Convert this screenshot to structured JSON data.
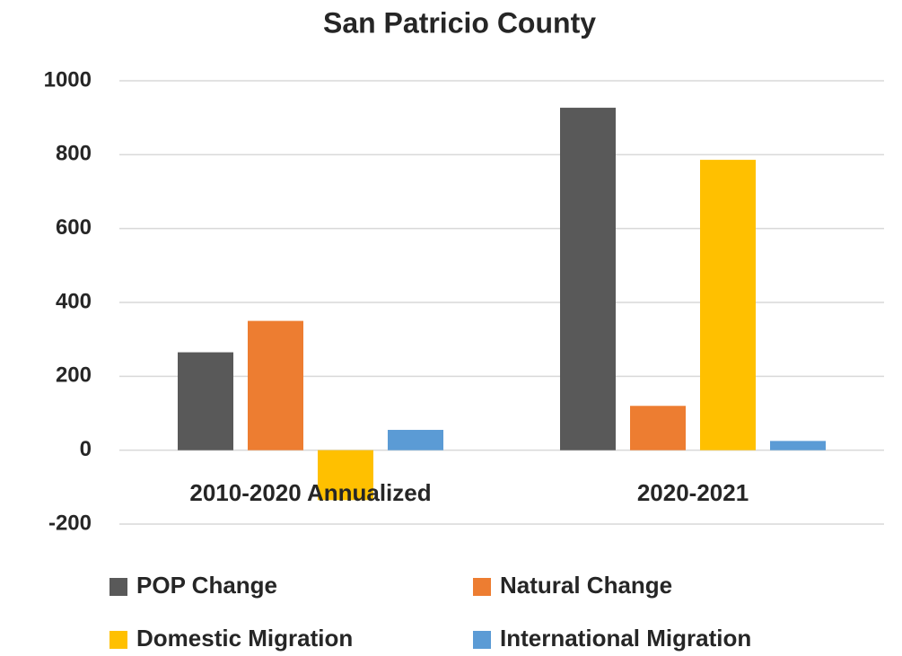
{
  "chart_data": {
    "type": "bar",
    "title": "San Patricio County",
    "categories": [
      "2010-2020 Annualized",
      "2020-2021"
    ],
    "series": [
      {
        "name": "POP Change",
        "color": "#595959",
        "values": [
          265,
          927
        ]
      },
      {
        "name": "Natural Change",
        "color": "#ed7d31",
        "values": [
          350,
          120
        ]
      },
      {
        "name": "Domestic Migration",
        "color": "#ffc000",
        "values": [
          -135,
          786
        ]
      },
      {
        "name": "International Migration",
        "color": "#5b9bd5",
        "values": [
          55,
          25
        ]
      }
    ],
    "ylim": [
      -200,
      1000
    ],
    "yticks": [
      -200,
      0,
      200,
      400,
      600,
      800,
      1000
    ],
    "grid": true,
    "legend": "bottom"
  }
}
